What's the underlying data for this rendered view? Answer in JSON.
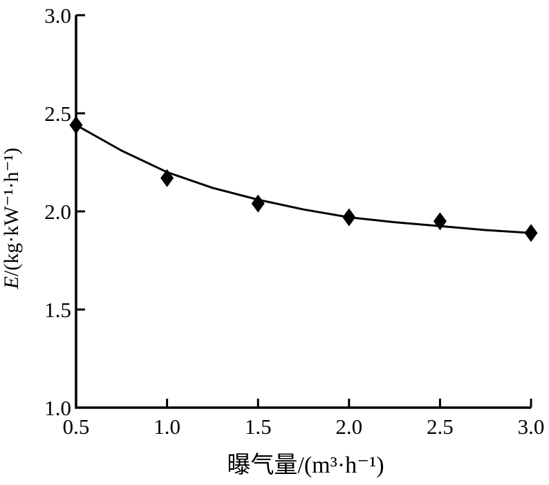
{
  "chart_data": {
    "type": "scatter",
    "title": "",
    "xlabel": "曝气量/(m³·h⁻¹)",
    "ylabel_italic": "E",
    "ylabel_rest": "/(kg·kW⁻¹·h⁻¹)",
    "xlim": [
      0.5,
      3.0
    ],
    "ylim": [
      1.0,
      3.0
    ],
    "xticks": [
      0.5,
      1.0,
      1.5,
      2.0,
      2.5,
      3.0
    ],
    "yticks": [
      1.0,
      1.5,
      2.0,
      2.5,
      3.0
    ],
    "grid": false,
    "legend": null,
    "colors": {
      "axis": "#000000",
      "marker": "#000000",
      "line": "#000000",
      "background": "#ffffff"
    },
    "series": [
      {
        "name": "energy-efficiency-points",
        "marker": "diamond",
        "x": [
          0.5,
          1.0,
          1.5,
          2.0,
          2.5,
          3.0
        ],
        "y": [
          2.44,
          2.17,
          2.04,
          1.97,
          1.95,
          1.89
        ]
      }
    ],
    "trend": {
      "name": "fitted-curve",
      "x": [
        0.5,
        0.75,
        1.0,
        1.25,
        1.5,
        1.75,
        2.0,
        2.25,
        2.5,
        2.75,
        3.0
      ],
      "y": [
        2.44,
        2.31,
        2.2,
        2.12,
        2.06,
        2.01,
        1.97,
        1.945,
        1.925,
        1.905,
        1.89
      ]
    }
  }
}
